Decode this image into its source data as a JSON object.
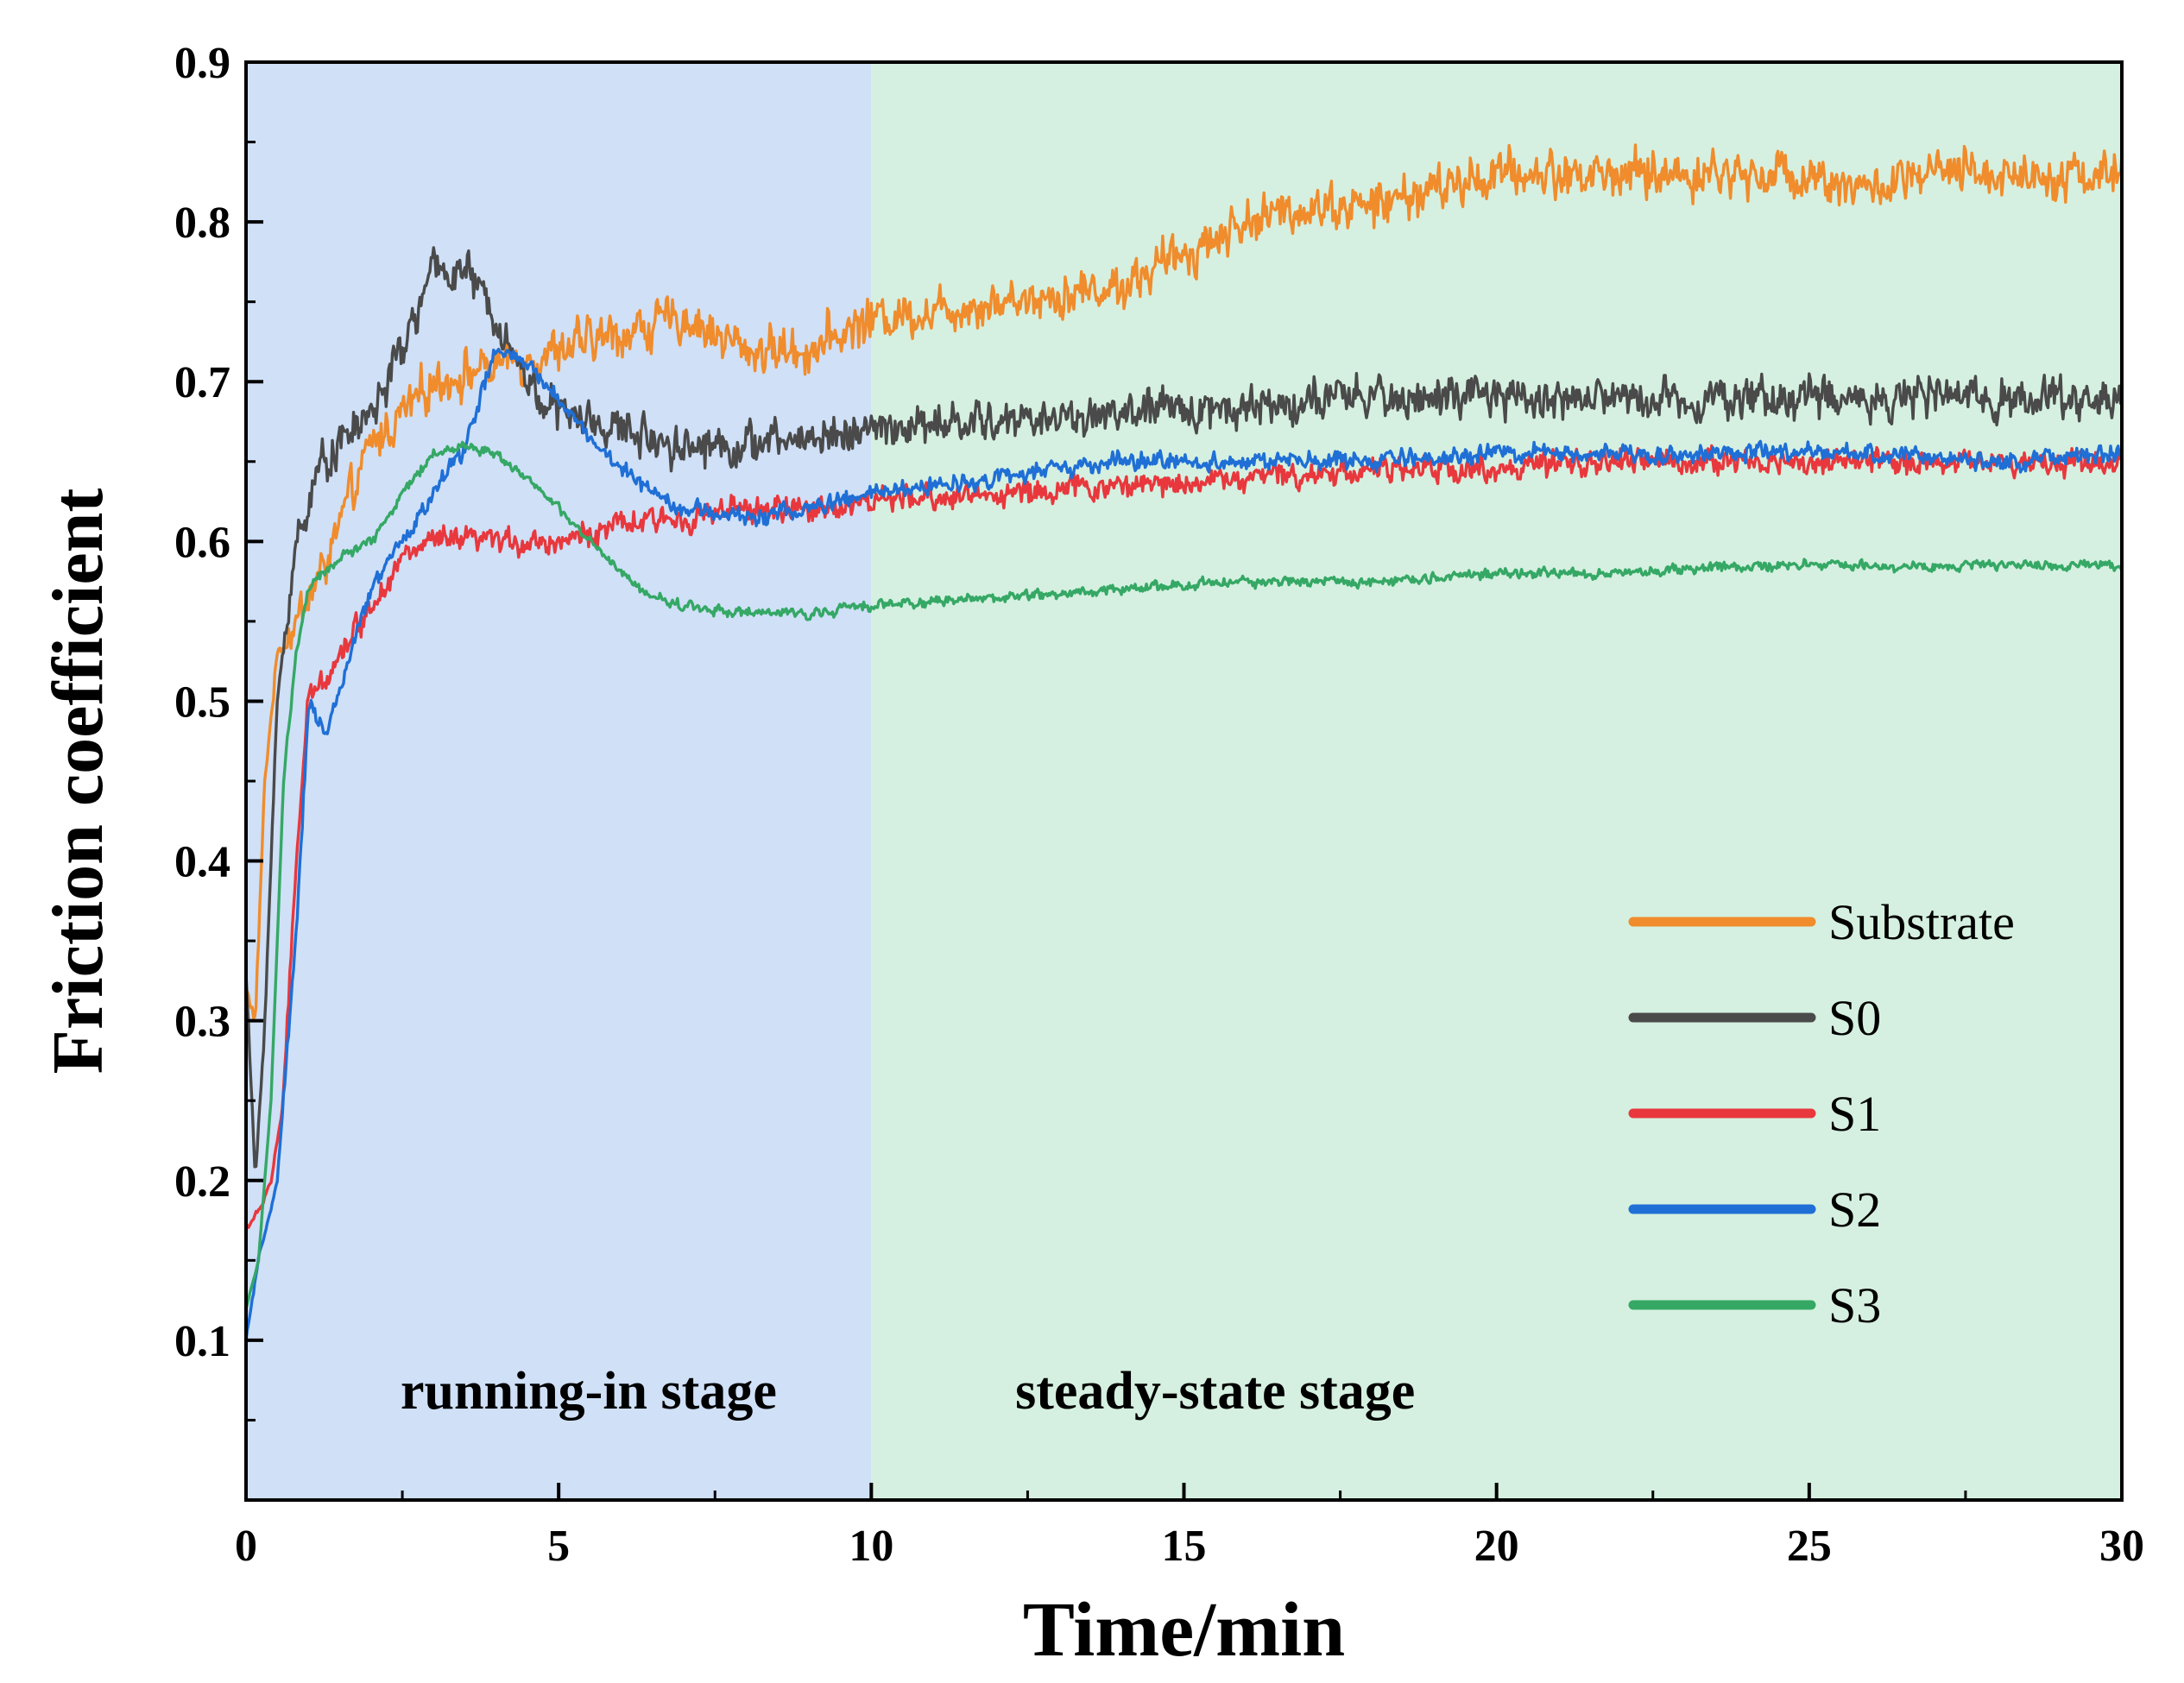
{
  "chart_data": {
    "type": "line",
    "title": "",
    "xlabel": "Time/min",
    "ylabel": "Friction coefficient",
    "xlim": [
      0,
      30
    ],
    "ylim": [
      0,
      0.9
    ],
    "x_ticks": [
      0,
      5,
      10,
      15,
      20,
      25,
      30
    ],
    "x_tick_labels": [
      "0",
      "5",
      "10",
      "15",
      "20",
      "25",
      "30"
    ],
    "y_ticks": [
      0.1,
      0.2,
      0.3,
      0.4,
      0.5,
      0.6,
      0.7,
      0.8,
      0.9
    ],
    "y_tick_labels": [
      "0.1",
      "0.2",
      "0.3",
      "0.4",
      "0.5",
      "0.6",
      "0.7",
      "0.8",
      "0.9"
    ],
    "legend_position": "bottom-right",
    "regions": [
      {
        "label": "running-in stage",
        "x_start": 0,
        "x_end": 10,
        "color": "#cfe0f7"
      },
      {
        "label": "steady-state stage",
        "x_start": 10,
        "x_end": 30,
        "color": "#d5f0e0"
      }
    ],
    "series": [
      {
        "name": "Substrate",
        "color": "#f08c2c",
        "noise": 0.018,
        "x": [
          0,
          0.15,
          0.3,
          0.5,
          0.8,
          1.2,
          2,
          3,
          4,
          5,
          6,
          7,
          8,
          9,
          10,
          12,
          14,
          15,
          16,
          17,
          18,
          19,
          20,
          21,
          22,
          23,
          24,
          25,
          26,
          27,
          28,
          29,
          30
        ],
        "y": [
          0.32,
          0.3,
          0.45,
          0.53,
          0.55,
          0.58,
          0.66,
          0.7,
          0.71,
          0.72,
          0.73,
          0.74,
          0.72,
          0.72,
          0.74,
          0.75,
          0.76,
          0.78,
          0.8,
          0.81,
          0.81,
          0.82,
          0.83,
          0.83,
          0.83,
          0.83,
          0.83,
          0.83,
          0.82,
          0.83,
          0.83,
          0.83,
          0.83
        ]
      },
      {
        "name": "S0",
        "color": "#4a4a4a",
        "noise": 0.016,
        "x": [
          0,
          0.15,
          0.3,
          0.5,
          0.8,
          1.2,
          2,
          2.5,
          3,
          3.5,
          4,
          4.5,
          5,
          6,
          7,
          8,
          9,
          10,
          12,
          14,
          16,
          18,
          20,
          22,
          24,
          26,
          28,
          30
        ],
        "y": [
          0.33,
          0.2,
          0.3,
          0.5,
          0.6,
          0.65,
          0.68,
          0.72,
          0.77,
          0.77,
          0.74,
          0.7,
          0.68,
          0.67,
          0.66,
          0.66,
          0.665,
          0.67,
          0.675,
          0.68,
          0.685,
          0.69,
          0.69,
          0.69,
          0.69,
          0.69,
          0.69,
          0.69
        ]
      },
      {
        "name": "S1",
        "color": "#e8383d",
        "noise": 0.01,
        "x": [
          0,
          0.2,
          0.4,
          0.6,
          0.8,
          1.0,
          1.5,
          2,
          2.5,
          3,
          4,
          5,
          6,
          7,
          8,
          9,
          10,
          12,
          14,
          16,
          18,
          20,
          22,
          24,
          26,
          28,
          30
        ],
        "y": [
          0.17,
          0.18,
          0.2,
          0.25,
          0.4,
          0.5,
          0.53,
          0.56,
          0.59,
          0.6,
          0.6,
          0.6,
          0.61,
          0.615,
          0.62,
          0.62,
          0.625,
          0.63,
          0.635,
          0.64,
          0.645,
          0.645,
          0.65,
          0.65,
          0.65,
          0.65,
          0.65
        ]
      },
      {
        "name": "S2",
        "color": "#1f6fd6",
        "noise": 0.007,
        "x": [
          0,
          0.2,
          0.5,
          0.8,
          1.0,
          1.3,
          1.6,
          2,
          2.5,
          3,
          3.5,
          4,
          4.5,
          5,
          5.5,
          6,
          7,
          8,
          9,
          10,
          12,
          14,
          16,
          18,
          20,
          22,
          24,
          26,
          28,
          30
        ],
        "y": [
          0.1,
          0.15,
          0.2,
          0.35,
          0.5,
          0.48,
          0.52,
          0.57,
          0.6,
          0.63,
          0.66,
          0.72,
          0.71,
          0.69,
          0.665,
          0.645,
          0.62,
          0.615,
          0.62,
          0.63,
          0.64,
          0.65,
          0.65,
          0.65,
          0.655,
          0.655,
          0.655,
          0.655,
          0.65,
          0.655
        ]
      },
      {
        "name": "S3",
        "color": "#35a865",
        "noise": 0.004,
        "x": [
          0,
          0.2,
          0.4,
          0.6,
          0.8,
          1.0,
          1.5,
          2,
          2.5,
          3,
          3.5,
          4,
          4.5,
          5,
          5.5,
          6,
          6.5,
          7,
          8,
          9,
          10,
          12,
          14,
          16,
          18,
          20,
          22,
          24,
          26,
          28,
          30
        ],
        "y": [
          0.12,
          0.15,
          0.25,
          0.45,
          0.53,
          0.57,
          0.59,
          0.6,
          0.63,
          0.655,
          0.66,
          0.655,
          0.64,
          0.62,
          0.6,
          0.58,
          0.565,
          0.56,
          0.555,
          0.555,
          0.56,
          0.565,
          0.57,
          0.575,
          0.575,
          0.58,
          0.58,
          0.585,
          0.585,
          0.585,
          0.585
        ]
      }
    ]
  }
}
